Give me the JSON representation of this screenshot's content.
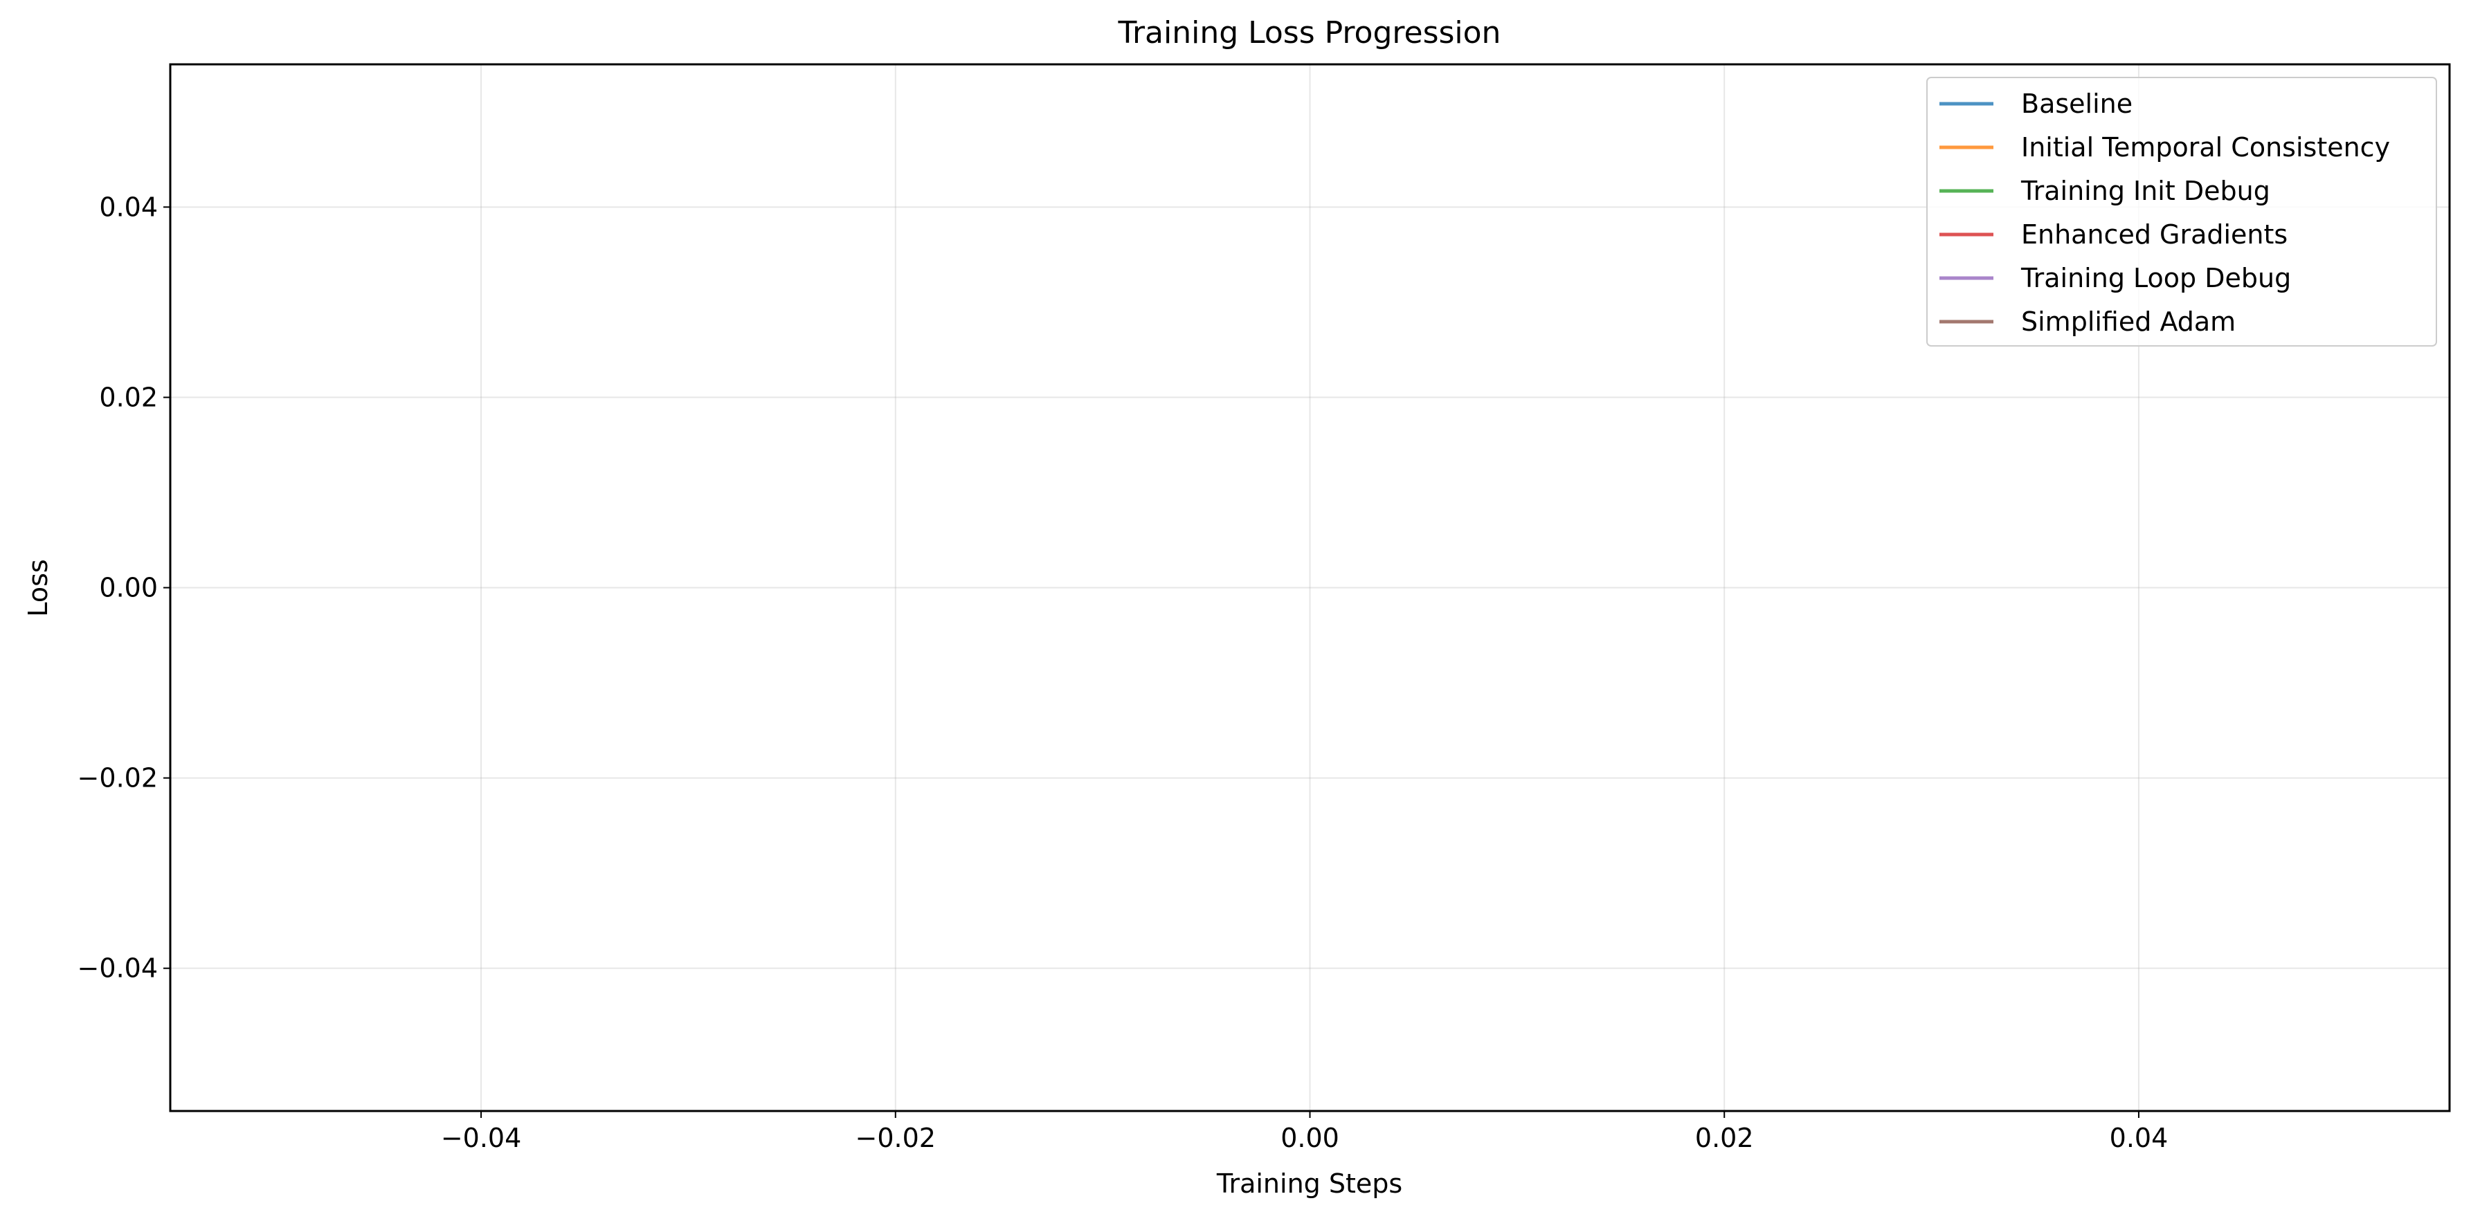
{
  "chart_data": {
    "type": "line",
    "title": "Training Loss Progression",
    "xlabel": "Training Steps",
    "ylabel": "Loss",
    "xlim": [
      -0.055,
      0.055
    ],
    "ylim": [
      -0.055,
      0.055
    ],
    "xticks": [
      -0.04,
      -0.02,
      0.0,
      0.02,
      0.04
    ],
    "yticks": [
      -0.04,
      -0.02,
      0.0,
      0.02,
      0.04
    ],
    "xtick_labels": [
      "−0.04",
      "−0.02",
      "0.00",
      "0.02",
      "0.04"
    ],
    "ytick_labels": [
      "−0.04",
      "−0.02",
      "0.00",
      "0.02",
      "0.04"
    ],
    "grid": true,
    "legend_position": "top-right",
    "series": [
      {
        "name": "Baseline",
        "color": "#1f77b4",
        "x": [],
        "y": []
      },
      {
        "name": "Initial Temporal Consistency",
        "color": "#ff7f0e",
        "x": [],
        "y": []
      },
      {
        "name": "Training Init Debug",
        "color": "#2ca02c",
        "x": [],
        "y": []
      },
      {
        "name": "Enhanced Gradients",
        "color": "#d62728",
        "x": [],
        "y": []
      },
      {
        "name": "Training Loop Debug",
        "color": "#9467bd",
        "x": [],
        "y": []
      },
      {
        "name": "Simplified Adam",
        "color": "#8c564b",
        "x": [],
        "y": []
      }
    ]
  }
}
